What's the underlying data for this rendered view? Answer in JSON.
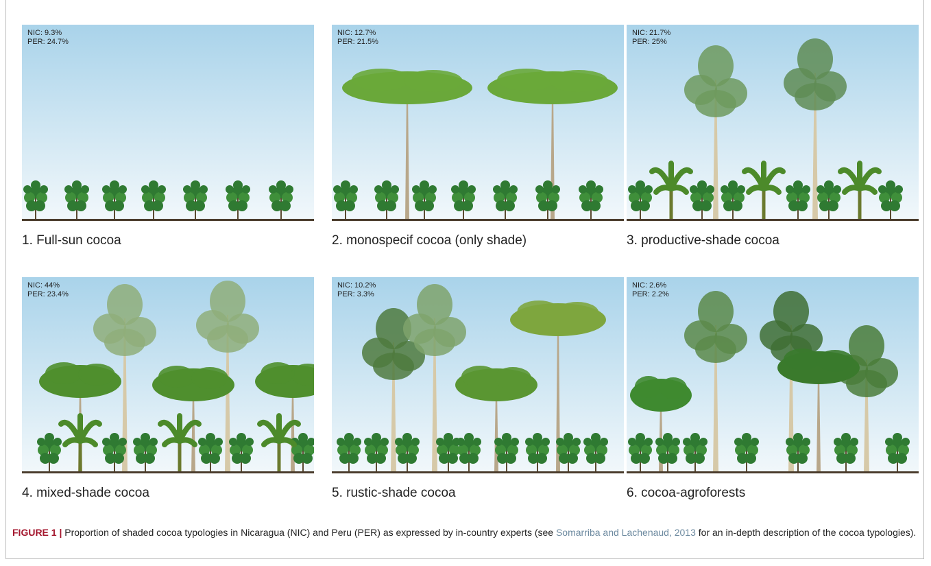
{
  "panels": [
    {
      "nic": "NIC: 9.3%",
      "per": "PER: 24.7%",
      "caption": "1. Full-sun cocoa"
    },
    {
      "nic": "NIC: 12.7%",
      "per": "PER: 21.5%",
      "caption": "2. monospecif cocoa (only shade)"
    },
    {
      "nic": "NIC: 21.7%",
      "per": "PER: 25%",
      "caption": "3. productive-shade cocoa"
    },
    {
      "nic": "NIC: 44%",
      "per": "PER: 23.4%",
      "caption": "4. mixed-shade cocoa"
    },
    {
      "nic": "NIC: 10.2%",
      "per": "PER: 3.3%",
      "caption": "5. rustic-shade cocoa"
    },
    {
      "nic": "NIC: 2.6%",
      "per": "PER: 2.2%",
      "caption": "6. cocoa-agroforests"
    }
  ],
  "figure_caption": {
    "label": "FIGURE 1 |",
    "text_before": " Proportion of shaded cocoa typologies in Nicaragua (NIC) and Peru (PER) as expressed by in-country experts (see ",
    "link": "Somarriba and Lachenaud, 2013",
    "text_after": " for an in-depth description of the cocoa typologies)."
  }
}
